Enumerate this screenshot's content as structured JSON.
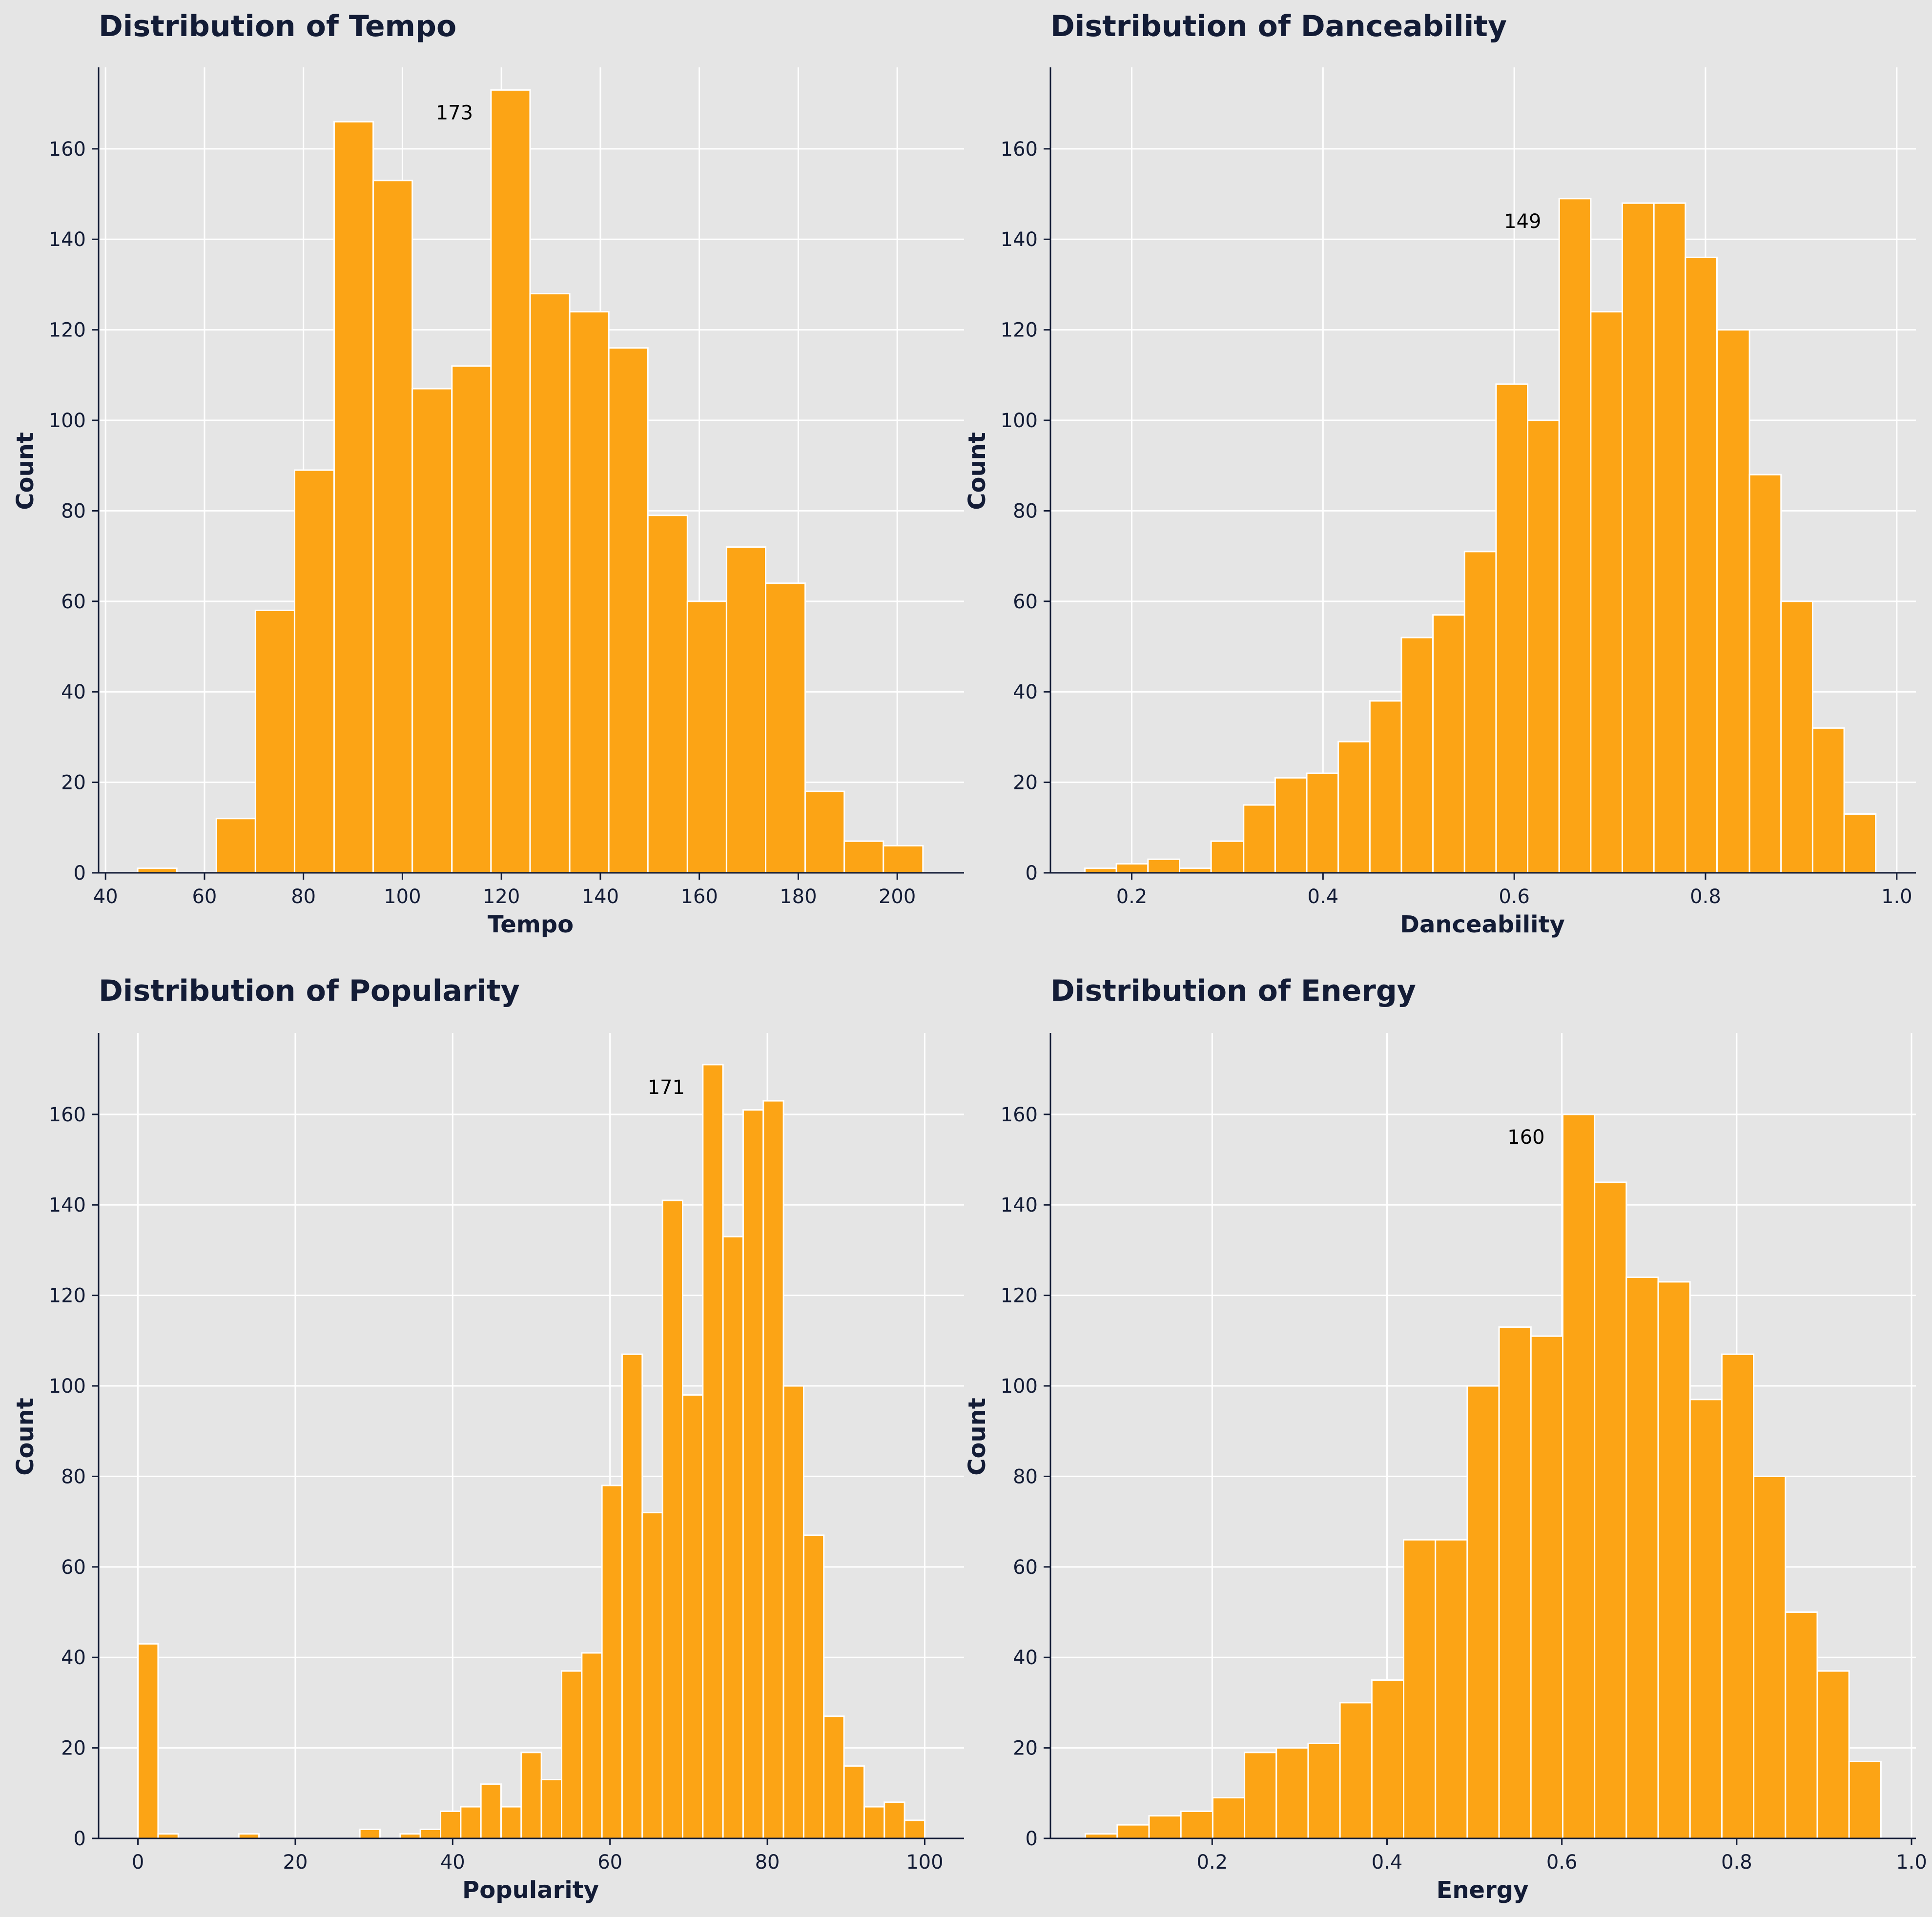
{
  "colors": {
    "background": "#e5e5e5",
    "bar": "#fca415",
    "bar_edge": "#ffffff",
    "grid": "#ffffff",
    "axis": "#131c36",
    "text": "#131c36"
  },
  "chart_data": [
    {
      "type": "bar",
      "title": "Distribution of Tempo",
      "xlabel": "Tempo",
      "ylabel": "Count",
      "grid": true,
      "xlim": [
        38.6,
        213.5
      ],
      "ylim": [
        0,
        178
      ],
      "xticks": [
        40,
        60,
        80,
        100,
        120,
        140,
        160,
        180,
        200
      ],
      "yticks": [
        0,
        20,
        40,
        60,
        80,
        100,
        120,
        140,
        160
      ],
      "xtick_labels": [
        "40",
        "60",
        "80",
        "100",
        "120",
        "140",
        "160",
        "180",
        "200"
      ],
      "ytick_labels": [
        "0",
        "20",
        "40",
        "60",
        "80",
        "100",
        "120",
        "140",
        "160"
      ],
      "bin_edges": [
        46.5,
        54.4,
        62.4,
        70.3,
        78.2,
        86.2,
        94.1,
        102.0,
        110.0,
        117.9,
        125.8,
        133.8,
        141.7,
        149.6,
        157.6,
        165.5,
        173.4,
        181.4,
        189.3,
        197.2,
        205.2
      ],
      "counts": [
        1,
        0,
        12,
        58,
        89,
        166,
        153,
        107,
        112,
        173,
        128,
        124,
        116,
        79,
        60,
        72,
        64,
        18,
        7,
        6
      ],
      "annotation": {
        "text": "173",
        "bin_index": 9
      }
    },
    {
      "type": "bar",
      "title": "Distribution of Danceability",
      "xlabel": "Danceability",
      "ylabel": "Count",
      "grid": true,
      "xlim": [
        0.115,
        1.02
      ],
      "ylim": [
        0,
        178
      ],
      "xticks": [
        0.2,
        0.4,
        0.6,
        0.8,
        1.0
      ],
      "yticks": [
        0,
        20,
        40,
        60,
        80,
        100,
        120,
        140,
        160
      ],
      "xtick_labels": [
        "0.2",
        "0.4",
        "0.6",
        "0.8",
        "1.0"
      ],
      "ytick_labels": [
        "0",
        "20",
        "40",
        "60",
        "80",
        "100",
        "120",
        "140",
        "160"
      ],
      "bin_edges": [
        0.151,
        0.184,
        0.217,
        0.25,
        0.283,
        0.317,
        0.35,
        0.383,
        0.416,
        0.449,
        0.482,
        0.515,
        0.548,
        0.581,
        0.614,
        0.647,
        0.68,
        0.713,
        0.746,
        0.779,
        0.812,
        0.846,
        0.879,
        0.912,
        0.945,
        0.978
      ],
      "counts": [
        1,
        2,
        3,
        1,
        7,
        15,
        21,
        22,
        29,
        38,
        52,
        57,
        71,
        108,
        100,
        149,
        124,
        148,
        148,
        136,
        120,
        88,
        60,
        32,
        13
      ],
      "annotation": {
        "text": "149",
        "bin_index": 15
      }
    },
    {
      "type": "bar",
      "title": "Distribution of Popularity",
      "xlabel": "Popularity",
      "ylabel": "Count",
      "grid": true,
      "xlim": [
        -5,
        105
      ],
      "ylim": [
        0,
        178
      ],
      "xticks": [
        0,
        20,
        40,
        60,
        80,
        100
      ],
      "yticks": [
        0,
        20,
        40,
        60,
        80,
        100,
        120,
        140,
        160
      ],
      "xtick_labels": [
        "0",
        "20",
        "40",
        "60",
        "80",
        "100"
      ],
      "ytick_labels": [
        "0",
        "20",
        "40",
        "60",
        "80",
        "100",
        "120",
        "140",
        "160"
      ],
      "bin_edges": [
        0,
        2.564,
        5.128,
        7.692,
        10.256,
        12.821,
        15.385,
        17.949,
        20.513,
        23.077,
        25.641,
        28.205,
        30.769,
        33.333,
        35.897,
        38.462,
        41.026,
        43.59,
        46.154,
        48.718,
        51.282,
        53.846,
        56.41,
        58.974,
        61.538,
        64.103,
        66.667,
        69.231,
        71.795,
        74.359,
        76.923,
        79.487,
        82.051,
        84.615,
        87.179,
        89.744,
        92.308,
        94.872,
        97.436,
        100
      ],
      "counts": [
        43,
        1,
        0,
        0,
        0,
        1,
        0,
        0,
        0,
        0,
        0,
        2,
        0,
        1,
        2,
        6,
        7,
        12,
        7,
        19,
        13,
        37,
        41,
        78,
        107,
        72,
        141,
        98,
        171,
        133,
        161,
        163,
        100,
        67,
        27,
        16,
        7,
        8,
        4
      ],
      "annotation": {
        "text": "171",
        "bin_index": 28
      }
    },
    {
      "type": "bar",
      "title": "Distribution of Energy",
      "xlabel": "Energy",
      "ylabel": "Count",
      "grid": true,
      "xlim": [
        0.015,
        1.005
      ],
      "ylim": [
        0,
        178
      ],
      "xticks": [
        0.2,
        0.4,
        0.6,
        0.8,
        1.0
      ],
      "yticks": [
        0,
        20,
        40,
        60,
        80,
        100,
        120,
        140,
        160
      ],
      "xtick_labels": [
        "0.2",
        "0.4",
        "0.6",
        "0.8",
        "1.0"
      ],
      "ytick_labels": [
        "0",
        "20",
        "40",
        "60",
        "80",
        "100",
        "120",
        "140",
        "160"
      ],
      "bin_edges": [
        0.055,
        0.0914,
        0.1278,
        0.1642,
        0.2006,
        0.237,
        0.2734,
        0.3098,
        0.3462,
        0.3826,
        0.419,
        0.4554,
        0.4918,
        0.5282,
        0.5646,
        0.601,
        0.6374,
        0.6738,
        0.7102,
        0.7466,
        0.783,
        0.8194,
        0.8558,
        0.8922,
        0.9286,
        0.965
      ],
      "counts": [
        1,
        3,
        5,
        6,
        9,
        19,
        20,
        21,
        30,
        35,
        66,
        66,
        100,
        113,
        111,
        160,
        145,
        124,
        123,
        97,
        107,
        80,
        50,
        37,
        17
      ],
      "annotation": {
        "text": "160",
        "bin_index": 15
      }
    }
  ]
}
